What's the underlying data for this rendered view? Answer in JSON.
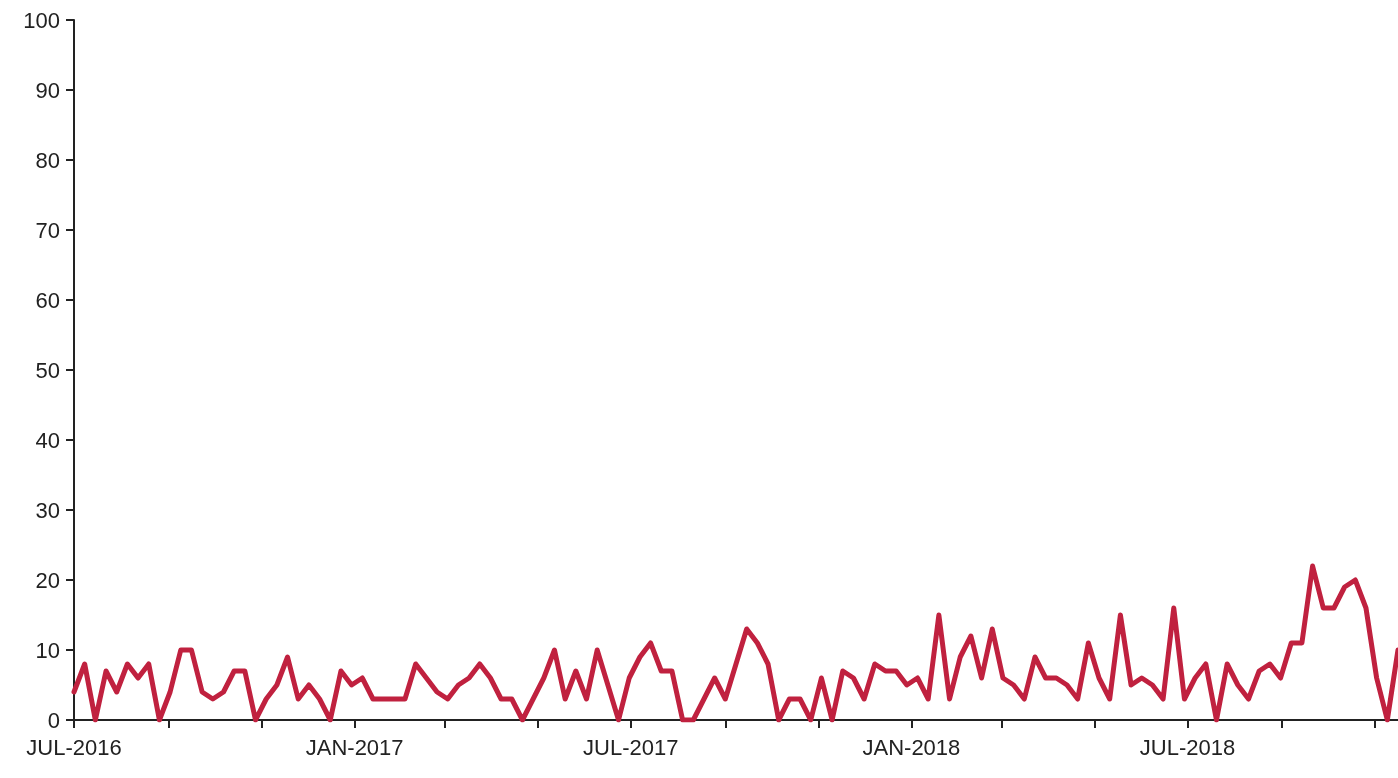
{
  "chart_data": {
    "type": "line",
    "x": [
      "2016-07-01",
      "2016-07-08",
      "2016-07-15",
      "2016-07-22",
      "2016-07-29",
      "2016-08-05",
      "2016-08-12",
      "2016-08-19",
      "2016-08-26",
      "2016-09-02",
      "2016-09-09",
      "2016-09-16",
      "2016-09-23",
      "2016-09-30",
      "2016-10-07",
      "2016-10-14",
      "2016-10-21",
      "2016-10-28",
      "2016-11-04",
      "2016-11-11",
      "2016-11-18",
      "2016-11-25",
      "2016-12-02",
      "2016-12-09",
      "2016-12-16",
      "2016-12-23",
      "2016-12-30",
      "2017-01-06",
      "2017-01-13",
      "2017-01-20",
      "2017-01-27",
      "2017-02-03",
      "2017-02-10",
      "2017-02-17",
      "2017-02-24",
      "2017-03-03",
      "2017-03-10",
      "2017-03-17",
      "2017-03-24",
      "2017-03-31",
      "2017-04-07",
      "2017-04-14",
      "2017-04-21",
      "2017-04-28",
      "2017-05-05",
      "2017-05-12",
      "2017-05-19",
      "2017-05-26",
      "2017-06-02",
      "2017-06-09",
      "2017-06-16",
      "2017-06-23",
      "2017-06-30",
      "2017-07-07",
      "2017-07-14",
      "2017-07-21",
      "2017-07-28",
      "2017-08-04",
      "2017-08-11",
      "2017-08-18",
      "2017-08-25",
      "2017-09-01",
      "2017-09-08",
      "2017-09-15",
      "2017-09-22",
      "2017-09-29",
      "2017-10-06",
      "2017-10-13",
      "2017-10-20",
      "2017-10-27",
      "2017-11-03",
      "2017-11-10",
      "2017-11-17",
      "2017-11-24",
      "2017-12-01",
      "2017-12-08",
      "2017-12-15",
      "2017-12-22",
      "2017-12-29",
      "2018-01-05",
      "2018-01-12",
      "2018-01-19",
      "2018-01-26",
      "2018-02-02",
      "2018-02-09",
      "2018-02-16",
      "2018-02-23",
      "2018-03-02",
      "2018-03-09",
      "2018-03-16",
      "2018-03-23",
      "2018-03-30",
      "2018-04-06",
      "2018-04-13",
      "2018-04-20",
      "2018-04-27",
      "2018-05-04",
      "2018-05-11",
      "2018-05-18",
      "2018-05-25",
      "2018-06-01",
      "2018-06-08",
      "2018-06-15",
      "2018-06-22",
      "2018-06-29",
      "2018-07-06",
      "2018-07-13",
      "2018-07-20",
      "2018-07-27",
      "2018-08-03",
      "2018-08-10",
      "2018-08-17",
      "2018-08-24",
      "2018-08-31",
      "2018-09-07",
      "2018-09-14",
      "2018-09-21",
      "2018-09-28",
      "2018-10-05",
      "2018-10-12",
      "2018-10-19",
      "2018-10-26",
      "2018-11-02",
      "2018-11-09",
      "2018-11-16"
    ],
    "series": [
      {
        "color": "#c0213f",
        "values": [
          4,
          8,
          0,
          7,
          4,
          8,
          6,
          8,
          0,
          4,
          10,
          10,
          4,
          3,
          4,
          7,
          7,
          0,
          3,
          5,
          9,
          3,
          5,
          3,
          0,
          7,
          5,
          6,
          3,
          3,
          3,
          3,
          8,
          6,
          4,
          3,
          5,
          6,
          8,
          6,
          3,
          3,
          0,
          3,
          6,
          10,
          3,
          7,
          3,
          10,
          5,
          0,
          6,
          9,
          11,
          7,
          7,
          0,
          0,
          3,
          6,
          3,
          8,
          13,
          11,
          8,
          0,
          3,
          3,
          0,
          6,
          0,
          7,
          6,
          3,
          8,
          7,
          7,
          5,
          6,
          3,
          15,
          3,
          9,
          12,
          6,
          13,
          6,
          5,
          3,
          9,
          6,
          6,
          5,
          3,
          11,
          6,
          3,
          15,
          5,
          6,
          5,
          3,
          16,
          3,
          6,
          8,
          0,
          8,
          5,
          3,
          7,
          8,
          6,
          11,
          11,
          22,
          16,
          16,
          19,
          20,
          16,
          6,
          0,
          10
        ]
      }
    ],
    "xlim": [
      "2016-07-01",
      "2018-11-16"
    ],
    "xticks": [
      {
        "value": "2016-07-01",
        "label": "JUL-2016"
      },
      {
        "value": "2016-09-01",
        "label": null
      },
      {
        "value": "2016-11-01",
        "label": null
      },
      {
        "value": "2017-01-01",
        "label": "JAN-2017"
      },
      {
        "value": "2017-03-01",
        "label": null
      },
      {
        "value": "2017-05-01",
        "label": null
      },
      {
        "value": "2017-07-01",
        "label": "JUL-2017"
      },
      {
        "value": "2017-09-01",
        "label": null
      },
      {
        "value": "2017-11-01",
        "label": null
      },
      {
        "value": "2018-01-01",
        "label": "JAN-2018"
      },
      {
        "value": "2018-03-01",
        "label": null
      },
      {
        "value": "2018-05-01",
        "label": null
      },
      {
        "value": "2018-07-01",
        "label": "JUL-2018"
      },
      {
        "value": "2018-09-01",
        "label": null
      },
      {
        "value": "2018-11-01",
        "label": null
      }
    ],
    "ylim": [
      0,
      100
    ],
    "yticks": [
      0,
      10,
      20,
      30,
      40,
      50,
      60,
      70,
      80,
      90,
      100
    ],
    "grid": false,
    "marker": "none",
    "line_style": "solid"
  }
}
